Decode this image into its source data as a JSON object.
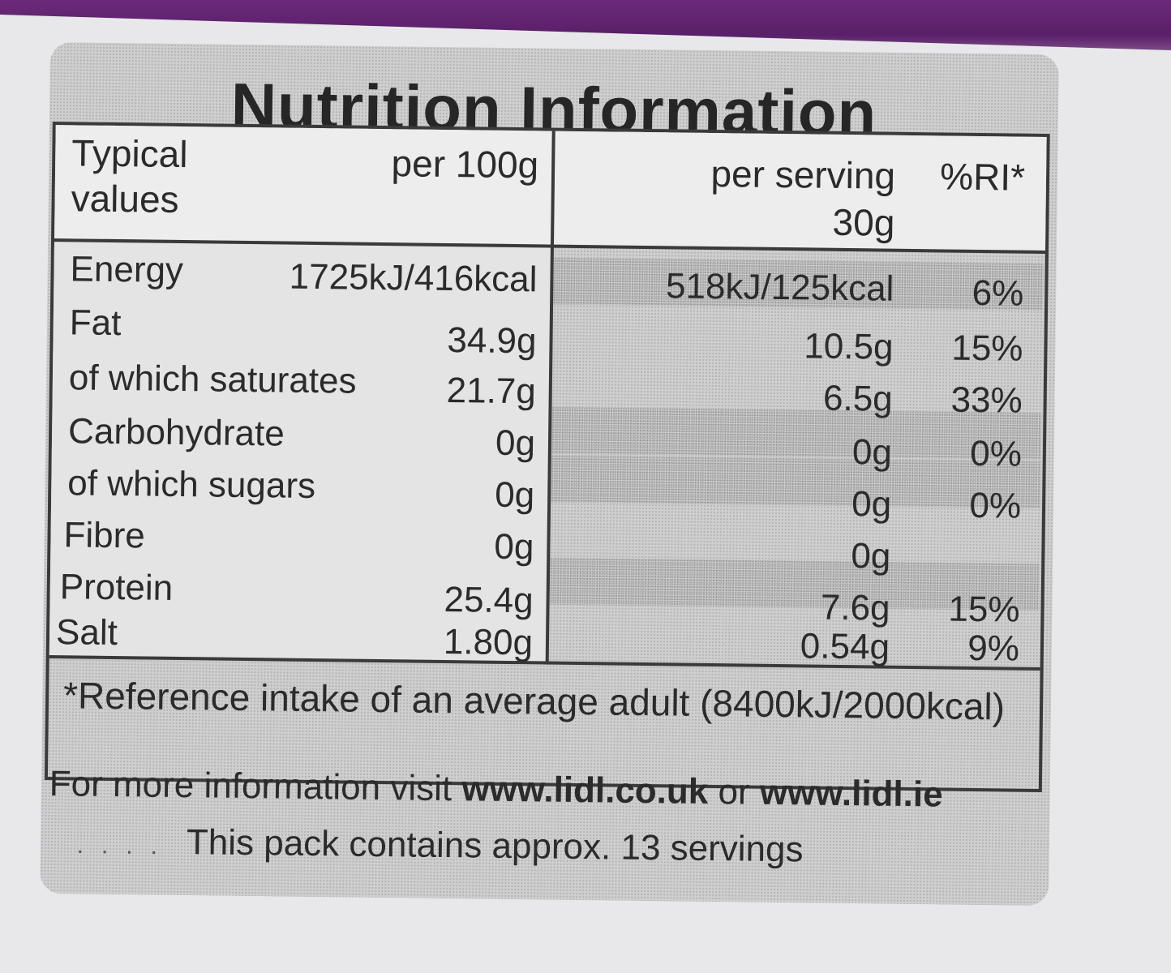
{
  "title": "Nutrition Information",
  "header": {
    "typical_line1": "Typical",
    "typical_line2": "values",
    "per100": "per 100g",
    "per_serving_line1": "per serving",
    "per_serving_line2": "30g",
    "ri": "%RI*"
  },
  "rows": [
    {
      "label": "Energy",
      "per100": "1725kJ/416kcal",
      "serving": "518kJ/125kcal",
      "ri": "6%"
    },
    {
      "label": "Fat",
      "per100": "34.9g",
      "serving": "10.5g",
      "ri": "15%"
    },
    {
      "label": "of which saturates",
      "per100": "21.7g",
      "serving": "6.5g",
      "ri": "33%"
    },
    {
      "label": "Carbohydrate",
      "per100": "0g",
      "serving": "0g",
      "ri": "0%"
    },
    {
      "label": "of which sugars",
      "per100": "0g",
      "serving": "0g",
      "ri": "0%"
    },
    {
      "label": "Fibre",
      "per100": "0g",
      "serving": "0g",
      "ri": ""
    },
    {
      "label": "Protein",
      "per100": "25.4g",
      "serving": "7.6g",
      "ri": "15%"
    },
    {
      "label": "Salt",
      "per100": "1.80g",
      "serving": "0.54g",
      "ri": "9%"
    }
  ],
  "footnote": "*Reference intake of an average adult (8400kJ/2000kcal)",
  "info": {
    "prefix": "For more information visit ",
    "site_uk": "www.lidl.co.uk",
    "or": " or ",
    "site_ie": "www.lidl.ie"
  },
  "servings_note": "This pack contains approx. 13 servings"
}
